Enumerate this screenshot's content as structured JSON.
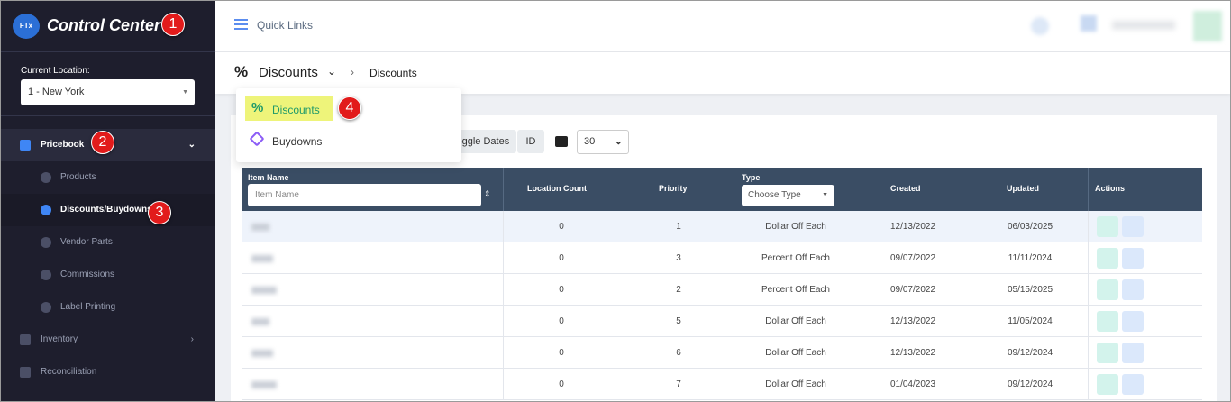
{
  "sidebar": {
    "brand": "Control Center",
    "location_label": "Current Location:",
    "location_value": "1 - New York",
    "menu": [
      "Pricebook",
      "Products",
      "Discounts/Buydowns",
      "Vendor Parts",
      "Commissions",
      "Label Printing",
      "Inventory",
      "Reconciliation"
    ]
  },
  "callouts": [
    "1",
    "2",
    "3",
    "4"
  ],
  "topbar": {
    "quick_links": "Quick Links"
  },
  "breadcrumb": {
    "icon": "%",
    "section": "Discounts",
    "current": "Discounts"
  },
  "dropdown": {
    "items": [
      "Discounts",
      "Buydowns"
    ]
  },
  "toolbar": {
    "toggle_dates": "Toggle Dates",
    "id": "ID",
    "page_size": "30"
  },
  "table": {
    "headers": [
      "Item Name",
      "Location Count",
      "Priority",
      "Type",
      "Created",
      "Updated",
      "Actions"
    ],
    "item_placeholder": "Item Name",
    "type_placeholder": "Choose Type",
    "rows": [
      [
        "0",
        "1",
        "Dollar Off Each",
        "12/13/2022",
        "06/03/2025"
      ],
      [
        "0",
        "3",
        "Percent Off Each",
        "09/07/2022",
        "11/11/2024"
      ],
      [
        "0",
        "2",
        "Percent Off Each",
        "09/07/2022",
        "05/15/2025"
      ],
      [
        "0",
        "5",
        "Dollar Off Each",
        "12/13/2022",
        "11/05/2024"
      ],
      [
        "0",
        "6",
        "Dollar Off Each",
        "12/13/2022",
        "09/12/2024"
      ],
      [
        "0",
        "7",
        "Dollar Off Each",
        "01/04/2023",
        "09/12/2024"
      ]
    ]
  }
}
